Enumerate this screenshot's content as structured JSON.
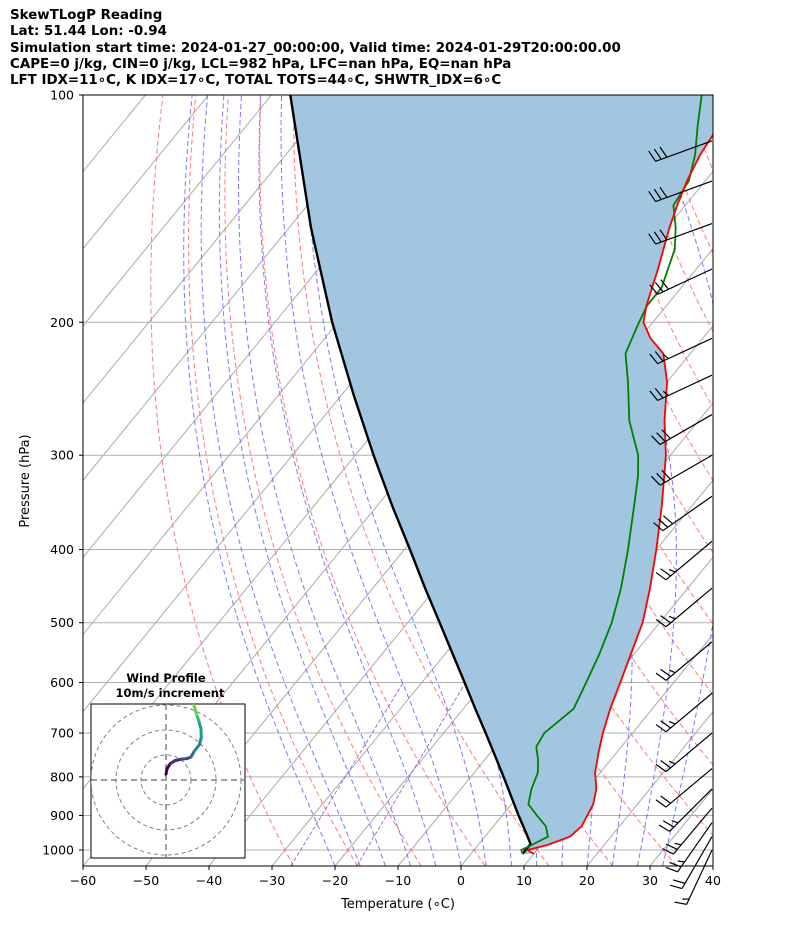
{
  "header": {
    "title": "SkewTLogP Reading",
    "location": "Lat: 51.44   Lon: -0.94",
    "times": "Simulation start time: 2024-01-27_00:00:00, Valid time: 2024-01-29T20:00:00.00",
    "indices1": "CAPE=0 j/kg, CIN=0 j/kg, LCL=982 hPa, LFC=nan hPa, EQ=nan hPa",
    "indices2": "LFT IDX=11∘C, K IDX=17∘C, TOTAL TOTS=44∘C, SHWTR_IDX=6∘C"
  },
  "colors": {
    "temperature": "#ff0000",
    "dewpoint": "#008000",
    "parcel": "#000000",
    "shading": "#a2c6df",
    "dry_adiabat": "#ff6b6b",
    "moist_adiabat": "#6a6aff",
    "mixing_ratio": "#9c5fd0",
    "isotherm": "#aaaaaa",
    "isobar": "#b0b0b0"
  },
  "chart_data": {
    "type": "line",
    "ylabel": "Pressure (hPa)",
    "xlabel": "Temperature (∘C)",
    "xlim": [
      -60,
      40
    ],
    "ylim": [
      1050,
      100
    ],
    "y_scale": "log",
    "grid": true,
    "x_ticks": [
      "−60",
      "−50",
      "−40",
      "−30",
      "−20",
      "−10",
      "0",
      "10",
      "20",
      "30",
      "40"
    ],
    "y_ticks": [
      "100",
      "200",
      "300",
      "400",
      "500",
      "600",
      "700",
      "800",
      "900",
      "1000"
    ],
    "series": [
      {
        "kind": "temperature",
        "points": [
          [
            1012,
            10
          ],
          [
            1000,
            8.5
          ],
          [
            985,
            11
          ],
          [
            960,
            13.5
          ],
          [
            930,
            14
          ],
          [
            900,
            13.5
          ],
          [
            870,
            13
          ],
          [
            830,
            11.5
          ],
          [
            790,
            9.2
          ],
          [
            740,
            7
          ],
          [
            700,
            5.3
          ],
          [
            650,
            3.3
          ],
          [
            600,
            1.5
          ],
          [
            550,
            -0.5
          ],
          [
            500,
            -2.7
          ],
          [
            450,
            -6
          ],
          [
            400,
            -10
          ],
          [
            350,
            -14.8
          ],
          [
            300,
            -20.7
          ],
          [
            270,
            -25.4
          ],
          [
            240,
            -30
          ],
          [
            220,
            -34.3
          ],
          [
            210,
            -38.3
          ],
          [
            200,
            -41.5
          ],
          [
            190,
            -43.2
          ],
          [
            180,
            -44.6
          ],
          [
            170,
            -46.1
          ],
          [
            160,
            -47.8
          ],
          [
            150,
            -49.6
          ],
          [
            140,
            -51.3
          ],
          [
            130,
            -52.9
          ],
          [
            120,
            -54.2
          ],
          [
            110,
            -55
          ],
          [
            100,
            -56
          ]
        ]
      },
      {
        "kind": "dewpoint",
        "points": [
          [
            1012,
            8.2
          ],
          [
            1000,
            7.5
          ],
          [
            985,
            8.5
          ],
          [
            960,
            10
          ],
          [
            930,
            8.3
          ],
          [
            900,
            5.5
          ],
          [
            870,
            2.7
          ],
          [
            830,
            1.2
          ],
          [
            790,
            0.1
          ],
          [
            760,
            -1.5
          ],
          [
            730,
            -3.5
          ],
          [
            700,
            -4
          ],
          [
            650,
            -2.5
          ],
          [
            600,
            -3.9
          ],
          [
            550,
            -5.5
          ],
          [
            500,
            -7.6
          ],
          [
            450,
            -10.6
          ],
          [
            400,
            -14.5
          ],
          [
            350,
            -19.2
          ],
          [
            320,
            -22.4
          ],
          [
            300,
            -25.1
          ],
          [
            270,
            -31
          ],
          [
            240,
            -36.2
          ],
          [
            220,
            -40.3
          ],
          [
            200,
            -42.2
          ],
          [
            190,
            -43.1
          ],
          [
            180,
            -43.1
          ],
          [
            160,
            -46
          ],
          [
            150,
            -48.6
          ],
          [
            140,
            -51.9
          ],
          [
            130,
            -52.6
          ],
          [
            120,
            -55
          ],
          [
            110,
            -58.3
          ],
          [
            100,
            -61.7
          ]
        ]
      },
      {
        "kind": "parcel",
        "points": [
          [
            1012,
            8.2
          ],
          [
            982,
            8.2
          ],
          [
            950,
            6.1
          ],
          [
            900,
            2.6
          ],
          [
            850,
            -1
          ],
          [
            800,
            -4.8
          ],
          [
            750,
            -8.9
          ],
          [
            700,
            -13.3
          ],
          [
            650,
            -18.1
          ],
          [
            600,
            -23.2
          ],
          [
            550,
            -28.8
          ],
          [
            500,
            -34.9
          ],
          [
            450,
            -41.7
          ],
          [
            400,
            -49.1
          ],
          [
            350,
            -57.6
          ],
          [
            300,
            -67.1
          ],
          [
            250,
            -78
          ],
          [
            200,
            -90.9
          ],
          [
            150,
            -106.5
          ],
          [
            100,
            -127
          ]
        ]
      }
    ],
    "hodograph": {
      "title": "Wind Profile",
      "subtitle": "10m/s increment",
      "points": [
        [
          0,
          2.3
        ],
        [
          0.4,
          4.5
        ],
        [
          1.7,
          6.5
        ],
        [
          3.5,
          7.7
        ],
        [
          6,
          8.3
        ],
        [
          8.5,
          8.6
        ],
        [
          10,
          9.2
        ],
        [
          11.3,
          11.5
        ],
        [
          13.4,
          14.2
        ],
        [
          14.1,
          17
        ],
        [
          14,
          20.5
        ],
        [
          13.1,
          23.7
        ],
        [
          12.3,
          26
        ],
        [
          11.5,
          28.8
        ],
        [
          10.7,
          32
        ],
        [
          9.5,
          35.2
        ],
        [
          7.4,
          38.1
        ],
        [
          5,
          40
        ]
      ]
    },
    "wind_barbs": [
      {
        "p": 1000,
        "dir": 205,
        "speed_kt": 15
      },
      {
        "p": 960,
        "dir": 210,
        "speed_kt": 20
      },
      {
        "p": 920,
        "dir": 215,
        "speed_kt": 25
      },
      {
        "p": 880,
        "dir": 220,
        "speed_kt": 25
      },
      {
        "p": 830,
        "dir": 225,
        "speed_kt": 25
      },
      {
        "p": 780,
        "dir": 230,
        "speed_kt": 20
      },
      {
        "p": 700,
        "dir": 230,
        "speed_kt": 25
      },
      {
        "p": 620,
        "dir": 230,
        "speed_kt": 25
      },
      {
        "p": 530,
        "dir": 230,
        "speed_kt": 25
      },
      {
        "p": 450,
        "dir": 230,
        "speed_kt": 25
      },
      {
        "p": 390,
        "dir": 230,
        "speed_kt": 25
      },
      {
        "p": 340,
        "dir": 235,
        "speed_kt": 30
      },
      {
        "p": 300,
        "dir": 240,
        "speed_kt": 30
      },
      {
        "p": 265,
        "dir": 240,
        "speed_kt": 30
      },
      {
        "p": 235,
        "dir": 245,
        "speed_kt": 25
      },
      {
        "p": 210,
        "dir": 245,
        "speed_kt": 25
      },
      {
        "p": 170,
        "dir": 245,
        "speed_kt": 30
      },
      {
        "p": 148,
        "dir": 250,
        "speed_kt": 30
      },
      {
        "p": 130,
        "dir": 250,
        "speed_kt": 30
      },
      {
        "p": 115,
        "dir": 250,
        "speed_kt": 30
      }
    ]
  }
}
